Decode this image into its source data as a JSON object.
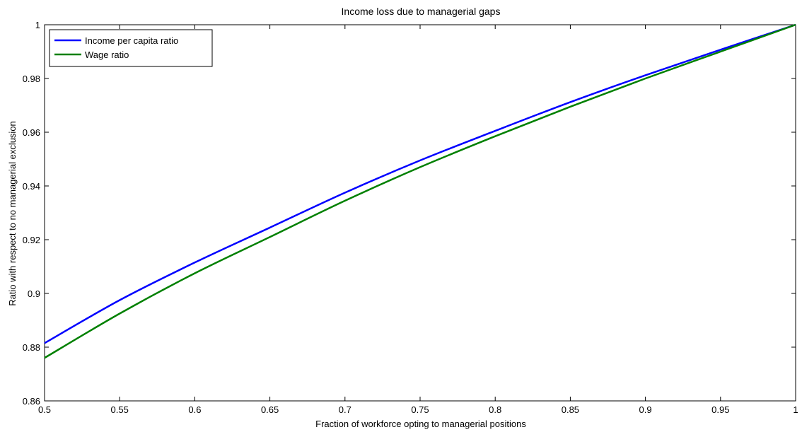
{
  "chart_data": {
    "type": "line",
    "title": "Income loss due to managerial gaps",
    "xlabel": "Fraction of workforce opting to managerial positions",
    "ylabel": "Ratio with respect to no managerial exclusion",
    "xlim": [
      0.5,
      1
    ],
    "ylim": [
      0.86,
      1
    ],
    "x_ticks": [
      0.5,
      0.55,
      0.6,
      0.65,
      0.7,
      0.75,
      0.8,
      0.85,
      0.9,
      0.95,
      1
    ],
    "x_tick_labels": [
      "0.5",
      "0.55",
      "0.6",
      "0.65",
      "0.7",
      "0.75",
      "0.8",
      "0.85",
      "0.9",
      "0.95",
      "1"
    ],
    "y_ticks": [
      0.86,
      0.88,
      0.9,
      0.92,
      0.94,
      0.96,
      0.98,
      1
    ],
    "y_tick_labels": [
      "0.86",
      "0.88",
      "0.9",
      "0.92",
      "0.94",
      "0.96",
      "0.98",
      "1"
    ],
    "grid": false,
    "legend_position": "top-left",
    "x": [
      0.5,
      0.55,
      0.6,
      0.65,
      0.7,
      0.75,
      0.8,
      0.85,
      0.9,
      0.95,
      1.0
    ],
    "series": [
      {
        "name": "Income per capita ratio",
        "color": "#0000ff",
        "values": [
          0.8815,
          0.8975,
          0.9115,
          0.9245,
          0.9375,
          0.9495,
          0.9605,
          0.9712,
          0.9812,
          0.9907,
          1.0
        ]
      },
      {
        "name": "Wage ratio",
        "color": "#008000",
        "values": [
          0.876,
          0.8925,
          0.9075,
          0.921,
          0.9345,
          0.947,
          0.9585,
          0.9695,
          0.98,
          0.99,
          1.0
        ]
      }
    ]
  }
}
